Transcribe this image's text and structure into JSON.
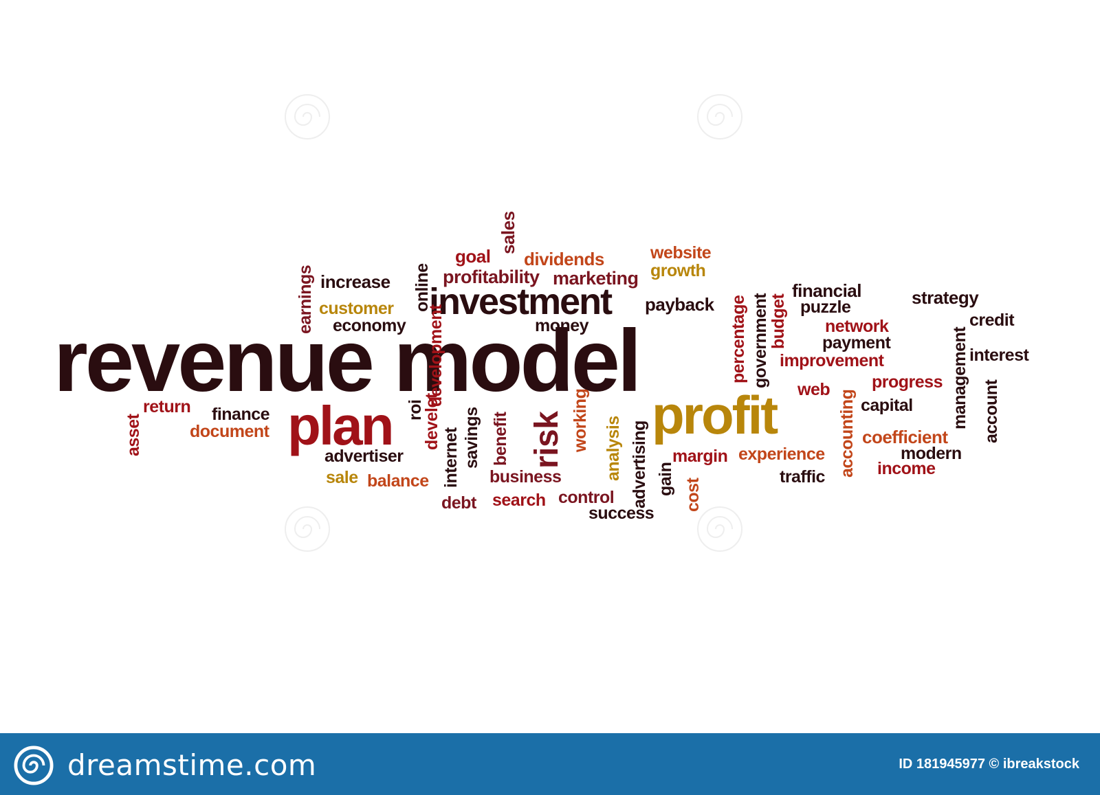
{
  "cloud": {
    "words": [
      "revenue model",
      "investment",
      "plan",
      "profit",
      "risk",
      "profitability",
      "marketing",
      "dividends",
      "goal",
      "sales",
      "website",
      "growth",
      "increase",
      "earnings",
      "customer",
      "economy",
      "online",
      "money",
      "payback",
      "percentage",
      "government",
      "budget",
      "financial",
      "puzzle",
      "strategy",
      "credit",
      "network",
      "payment",
      "improvement",
      "interest",
      "management",
      "account",
      "progress",
      "web",
      "accounting",
      "capital",
      "coefficient",
      "modern",
      "income",
      "traffic",
      "experience",
      "margin",
      "cost",
      "gain",
      "advertising",
      "analysis",
      "working",
      "benefit",
      "savings",
      "internet",
      "develet",
      "development",
      "roi",
      "return",
      "asset",
      "finance",
      "document",
      "advertiser",
      "sale",
      "balance",
      "debt",
      "search",
      "control",
      "success",
      "business"
    ]
  },
  "footer": {
    "brand": "dreamstime.com",
    "id_text": "ID 181945977 © ibreakstock"
  },
  "colors": {
    "footer_bg": "#1b6fa8",
    "dark": "#2a0d10",
    "maroon": "#7a1520",
    "red": "#a01218",
    "orange": "#c2461a",
    "gold": "#b8860b"
  },
  "icons": {
    "footer_logo": "spiral-logo-icon",
    "watermark": "spiral-watermark-icon"
  }
}
